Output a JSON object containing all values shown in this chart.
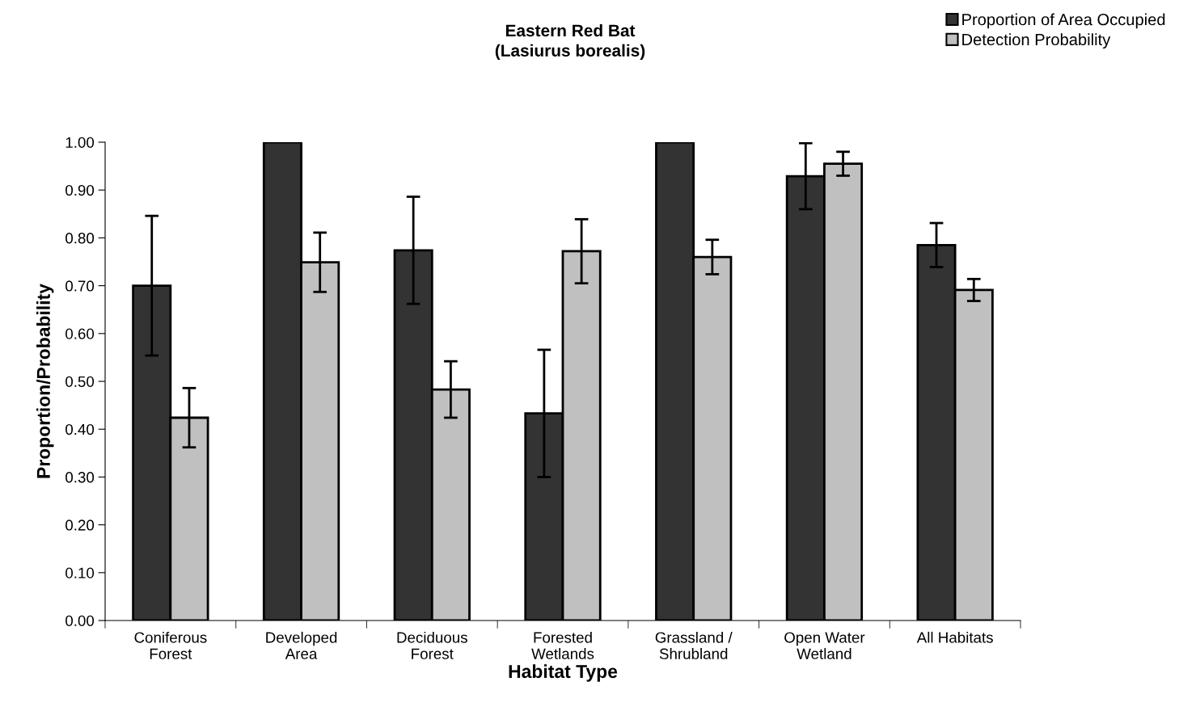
{
  "chart_data": {
    "type": "bar",
    "title": "Eastern Red Bat\n(Lasiurus borealis)",
    "xlabel": "Habitat Type",
    "ylabel": "Proportion/Probability",
    "categories": [
      "Coniferous\nForest",
      "Developed\nArea",
      "Deciduous\nForest",
      "Forested\nWetlands",
      "Grassland /\nShrubland",
      "Open Water\nWetland",
      "All Habitats"
    ],
    "series": [
      {
        "name": "Proportion of Area Occupied",
        "color": "#333333",
        "values": [
          0.7,
          1.0,
          0.774,
          0.433,
          1.0,
          0.929,
          0.785
        ],
        "errors": [
          0.146,
          null,
          0.112,
          0.133,
          null,
          0.069,
          0.046
        ]
      },
      {
        "name": "Detection Probability",
        "color": "#c0c0c0",
        "values": [
          0.424,
          0.749,
          0.483,
          0.772,
          0.76,
          0.955,
          0.691
        ],
        "errors": [
          0.062,
          0.062,
          0.059,
          0.067,
          0.036,
          0.025,
          0.023
        ]
      }
    ],
    "ylim": [
      0,
      1.0
    ],
    "yticks": [
      {
        "value": 0,
        "label": "0.00"
      },
      {
        "value": 0.1,
        "label": "0.10"
      },
      {
        "value": 0.2,
        "label": "0.20"
      },
      {
        "value": 0.3,
        "label": "0.30"
      },
      {
        "value": 0.4,
        "label": "0.40"
      },
      {
        "value": 0.5,
        "label": "0.50"
      },
      {
        "value": 0.6,
        "label": "0.60"
      },
      {
        "value": 0.7,
        "label": "0.70"
      },
      {
        "value": 0.8,
        "label": "0.80"
      },
      {
        "value": 0.9,
        "label": "0.90"
      },
      {
        "value": 1.0,
        "label": "1.00"
      }
    ],
    "grid": false,
    "legend": "top right"
  }
}
